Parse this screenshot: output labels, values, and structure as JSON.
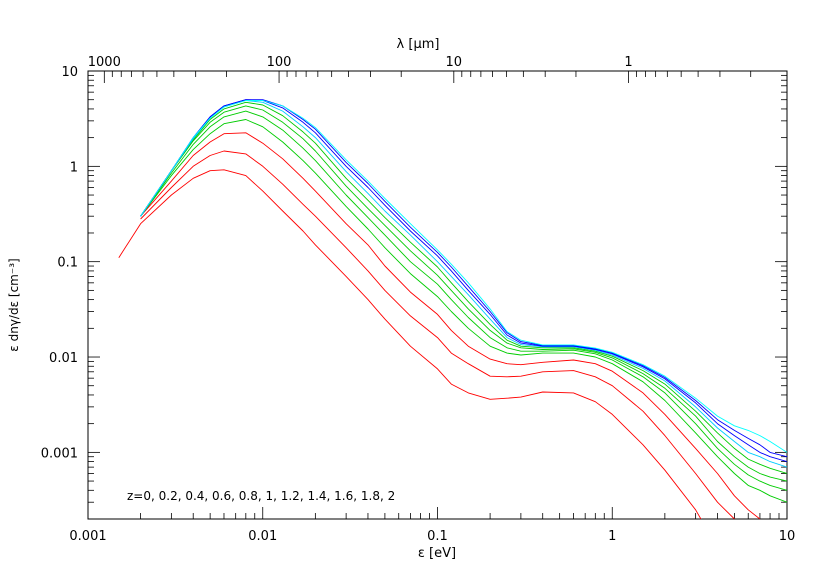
{
  "chart_data": {
    "type": "line",
    "xlabel": "ε  [eV]",
    "ylabel": "ε dnγ/dε [cm⁻³]",
    "top_axis_label": "λ  [μm]",
    "xscale": "log",
    "yscale": "log",
    "xlim": [
      0.001,
      10
    ],
    "ylim": [
      0.0002,
      10
    ],
    "grid": false,
    "x_tick_labels": [
      "0.001",
      "0.01",
      "0.1",
      "1",
      "10"
    ],
    "y_tick_labels": [
      "0.001",
      "0.01",
      "0.1",
      "1",
      "10"
    ],
    "top_tick_labels": [
      "1000",
      "100",
      "10",
      "1"
    ],
    "annotation": "z=0, 0.2, 0.4, 0.6, 0.8, 1, 1.2, 1.4, 1.6, 1.8, 2",
    "x": [
      0.0015,
      0.002,
      0.003,
      0.004,
      0.005,
      0.006,
      0.008,
      0.01,
      0.013,
      0.017,
      0.02,
      0.03,
      0.04,
      0.05,
      0.07,
      0.1,
      0.12,
      0.15,
      0.2,
      0.25,
      0.3,
      0.4,
      0.6,
      0.8,
      1,
      1.5,
      2,
      3,
      4,
      5,
      6,
      7,
      8,
      10
    ],
    "series": [
      {
        "name": "z=0",
        "color": "#ff0000",
        "values": [
          0.11,
          0.25,
          0.5,
          0.75,
          0.9,
          0.92,
          0.8,
          0.55,
          0.34,
          0.21,
          0.15,
          0.07,
          0.04,
          0.025,
          0.013,
          0.0075,
          0.0052,
          0.0042,
          0.0036,
          0.0037,
          0.0038,
          0.0043,
          0.0042,
          0.0034,
          0.0025,
          0.0012,
          0.00065,
          0.00025,
          0.0001,
          null,
          null,
          null,
          null,
          null
        ]
      },
      {
        "name": "z=0.2",
        "color": "#ff0000",
        "values": [
          null,
          0.28,
          0.6,
          1.0,
          1.3,
          1.45,
          1.35,
          1.0,
          0.65,
          0.4,
          0.3,
          0.14,
          0.08,
          0.05,
          0.027,
          0.016,
          0.011,
          0.0085,
          0.0063,
          0.0062,
          0.0063,
          0.007,
          0.0072,
          0.0062,
          0.005,
          0.0027,
          0.0015,
          0.0006,
          0.0003,
          0.0002,
          null,
          null,
          null,
          null
        ]
      },
      {
        "name": "z=0.4",
        "color": "#ff0000",
        "values": [
          null,
          0.3,
          0.7,
          1.3,
          1.8,
          2.2,
          2.25,
          1.75,
          1.2,
          0.75,
          0.55,
          0.25,
          0.15,
          0.09,
          0.048,
          0.028,
          0.019,
          0.013,
          0.0095,
          0.0085,
          0.0083,
          0.0088,
          0.0093,
          0.0085,
          0.0071,
          0.0042,
          0.0025,
          0.0011,
          0.0006,
          0.00035,
          0.00025,
          0.0002,
          null,
          null
        ]
      },
      {
        "name": "z=0.6",
        "color": "#00cc00",
        "values": [
          null,
          0.3,
          0.8,
          1.5,
          2.2,
          2.8,
          3.1,
          2.6,
          1.8,
          1.15,
          0.85,
          0.38,
          0.22,
          0.14,
          0.075,
          0.043,
          0.03,
          0.02,
          0.013,
          0.011,
          0.0105,
          0.011,
          0.011,
          0.01,
          0.0085,
          0.0055,
          0.0035,
          0.0016,
          0.0009,
          0.0006,
          0.00045,
          0.0004,
          0.00035,
          0.0003
        ]
      },
      {
        "name": "z=0.8",
        "color": "#00cc00",
        "values": [
          null,
          0.3,
          0.85,
          1.7,
          2.6,
          3.3,
          3.8,
          3.3,
          2.4,
          1.55,
          1.15,
          0.5,
          0.29,
          0.19,
          0.1,
          0.058,
          0.04,
          0.026,
          0.016,
          0.0125,
          0.0115,
          0.0115,
          0.0118,
          0.0108,
          0.0093,
          0.0062,
          0.0042,
          0.002,
          0.0011,
          0.00075,
          0.00058,
          0.0005,
          0.00045,
          0.0004
        ]
      },
      {
        "name": "z=1",
        "color": "#00cc00",
        "values": [
          null,
          0.3,
          0.9,
          1.85,
          2.9,
          3.7,
          4.3,
          3.9,
          2.9,
          1.95,
          1.45,
          0.62,
          0.36,
          0.24,
          0.13,
          0.072,
          0.05,
          0.032,
          0.019,
          0.014,
          0.0125,
          0.012,
          0.0122,
          0.0112,
          0.0098,
          0.0067,
          0.0047,
          0.0024,
          0.0013,
          0.0009,
          0.0007,
          0.0006,
          0.00055,
          0.0005
        ]
      },
      {
        "name": "z=1.2",
        "color": "#00cc00",
        "values": [
          null,
          0.3,
          0.9,
          1.9,
          3.1,
          4.0,
          4.7,
          4.4,
          3.4,
          2.3,
          1.75,
          0.75,
          0.44,
          0.29,
          0.16,
          0.088,
          0.06,
          0.038,
          0.022,
          0.015,
          0.013,
          0.0125,
          0.0125,
          0.0115,
          0.0102,
          0.0072,
          0.0052,
          0.0027,
          0.0016,
          0.0011,
          0.00085,
          0.00075,
          0.00068,
          0.0006
        ]
      },
      {
        "name": "z=1.4",
        "color": "#00ccff",
        "values": [
          null,
          0.3,
          0.9,
          1.95,
          3.2,
          4.2,
          4.9,
          4.7,
          3.8,
          2.6,
          2.0,
          0.88,
          0.52,
          0.34,
          0.19,
          0.1,
          0.07,
          0.045,
          0.025,
          0.016,
          0.0135,
          0.0128,
          0.0128,
          0.0118,
          0.0105,
          0.0076,
          0.0056,
          0.003,
          0.0018,
          0.0013,
          0.001,
          0.0009,
          0.0008,
          0.0007
        ]
      },
      {
        "name": "z=1.6",
        "color": "#0000ff",
        "values": [
          null,
          0.3,
          0.9,
          2.0,
          3.3,
          4.3,
          5.0,
          4.9,
          4.1,
          2.9,
          2.25,
          1.0,
          0.6,
          0.39,
          0.21,
          0.115,
          0.08,
          0.05,
          0.028,
          0.017,
          0.014,
          0.013,
          0.013,
          0.012,
          0.0108,
          0.0079,
          0.0059,
          0.0033,
          0.002,
          0.0015,
          0.0012,
          0.001,
          0.0009,
          0.0008
        ]
      },
      {
        "name": "z=1.8",
        "color": "#0000ff",
        "values": [
          null,
          0.3,
          0.9,
          2.0,
          3.3,
          4.3,
          5.0,
          5.0,
          4.3,
          3.1,
          2.45,
          1.1,
          0.66,
          0.43,
          0.23,
          0.125,
          0.088,
          0.055,
          0.03,
          0.018,
          0.0145,
          0.0132,
          0.0132,
          0.0122,
          0.011,
          0.0081,
          0.0061,
          0.0035,
          0.0022,
          0.0017,
          0.0014,
          0.0012,
          0.001,
          0.0009
        ]
      },
      {
        "name": "z=2",
        "color": "#00ffff",
        "values": [
          null,
          0.3,
          0.9,
          2.0,
          3.2,
          4.2,
          4.9,
          4.9,
          4.3,
          3.2,
          2.55,
          1.17,
          0.7,
          0.46,
          0.25,
          0.133,
          0.094,
          0.06,
          0.032,
          0.0185,
          0.015,
          0.0134,
          0.0134,
          0.0124,
          0.0112,
          0.0083,
          0.0063,
          0.0037,
          0.0024,
          0.0019,
          0.0017,
          0.0015,
          0.0013,
          0.001
        ]
      }
    ]
  }
}
